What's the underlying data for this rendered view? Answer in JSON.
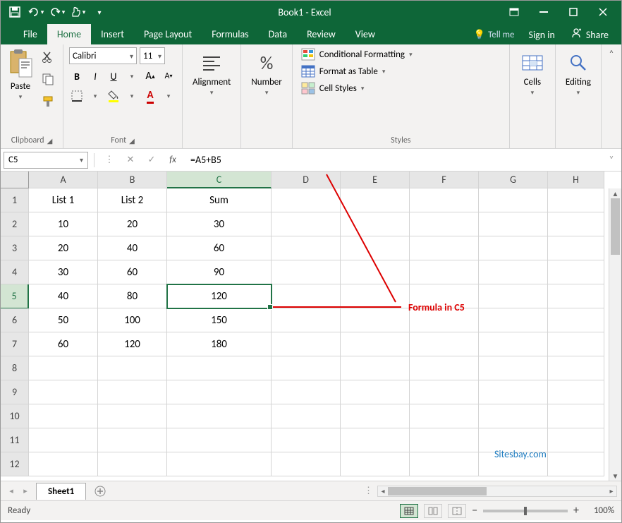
{
  "title": "Book1 - Excel",
  "colors": {
    "primary": "#0e6638",
    "accent": "#217346",
    "ribbon_bg": "#f3f2f1",
    "border": "#d4d4d4",
    "annotation": "#d00000",
    "link": "#1f7dc1"
  },
  "tabs": {
    "file": "File",
    "items": [
      "Home",
      "Insert",
      "Page Layout",
      "Formulas",
      "Data",
      "Review",
      "View"
    ],
    "active": "Home",
    "tell_me": "Tell me",
    "sign_in": "Sign in",
    "share": "Share"
  },
  "ribbon": {
    "clipboard": {
      "label": "Clipboard",
      "paste": "Paste"
    },
    "font": {
      "label": "Font",
      "name": "Calibri",
      "size": "11",
      "bold": "B",
      "italic": "I",
      "underline": "U"
    },
    "alignment": {
      "label": "Alignment"
    },
    "number": {
      "label": "Number"
    },
    "styles": {
      "label": "Styles",
      "conditional": "Conditional Formatting",
      "table": "Format as Table",
      "cell": "Cell Styles"
    },
    "cells": {
      "label": "Cells"
    },
    "editing": {
      "label": "Editing"
    }
  },
  "formula_bar": {
    "name_box": "C5",
    "formula": "=A5+B5"
  },
  "grid": {
    "columns": [
      "A",
      "B",
      "C",
      "D",
      "E",
      "F",
      "G",
      "H"
    ],
    "rows": 12,
    "active_col": "C",
    "active_row": 5,
    "data": {
      "headers": [
        "List 1",
        "List 2",
        "Sum"
      ],
      "rows": [
        [
          10,
          20,
          30
        ],
        [
          20,
          40,
          60
        ],
        [
          30,
          60,
          90
        ],
        [
          40,
          80,
          120
        ],
        [
          50,
          100,
          150
        ],
        [
          60,
          120,
          180
        ]
      ]
    }
  },
  "annotation": {
    "text": "Formula in C5",
    "line_color": "#d00000"
  },
  "watermark": "Sitesbay.com",
  "sheet_tabs": {
    "active": "Sheet1"
  },
  "status": {
    "ready": "Ready",
    "zoom": "100%"
  }
}
